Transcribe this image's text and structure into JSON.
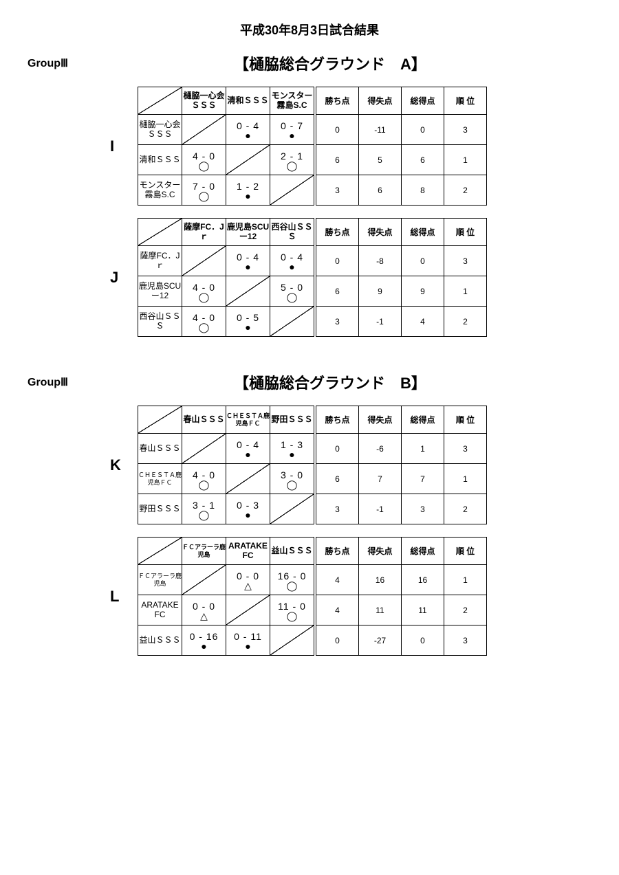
{
  "page_title": "平成30年8月3日試合結果",
  "stats_headers": [
    "勝ち点",
    "得失点",
    "総得点",
    "順 位"
  ],
  "sections": [
    {
      "group_label": "GroupⅢ",
      "venue": "【樋脇総合グラウンド　A】",
      "groups": [
        {
          "letter": "I",
          "teams": [
            "樋脇一心会ＳＳＳ",
            "清和ＳＳＳ",
            "モンスター霧島S.C"
          ],
          "team_small": [
            false,
            false,
            false
          ],
          "matches": [
            [
              null,
              {
                "s": "0 - 4",
                "m": "loss"
              },
              {
                "s": "0 - 7",
                "m": "loss"
              }
            ],
            [
              {
                "s": "4 - 0",
                "m": "win"
              },
              null,
              {
                "s": "2 - 1",
                "m": "win"
              }
            ],
            [
              {
                "s": "7 - 0",
                "m": "win"
              },
              {
                "s": "1 - 2",
                "m": "loss"
              },
              null
            ]
          ],
          "stats": [
            [
              "0",
              "-11",
              "0",
              "3"
            ],
            [
              "6",
              "5",
              "6",
              "1"
            ],
            [
              "3",
              "6",
              "8",
              "2"
            ]
          ]
        },
        {
          "letter": "J",
          "teams": [
            "薩摩FC．Jｒ",
            "鹿児島SCUー12",
            "西谷山ＳＳＳ"
          ],
          "team_small": [
            false,
            false,
            false
          ],
          "matches": [
            [
              null,
              {
                "s": "0 - 4",
                "m": "loss"
              },
              {
                "s": "0 - 4",
                "m": "loss"
              }
            ],
            [
              {
                "s": "4 - 0",
                "m": "win"
              },
              null,
              {
                "s": "5 - 0",
                "m": "win"
              }
            ],
            [
              {
                "s": "4 - 0",
                "m": "win"
              },
              {
                "s": "0 - 5",
                "m": "loss"
              },
              null
            ]
          ],
          "stats": [
            [
              "0",
              "-8",
              "0",
              "3"
            ],
            [
              "6",
              "9",
              "9",
              "1"
            ],
            [
              "3",
              "-1",
              "4",
              "2"
            ]
          ]
        }
      ]
    },
    {
      "group_label": "GroupⅢ",
      "venue": "【樋脇総合グラウンド　B】",
      "groups": [
        {
          "letter": "K",
          "teams": [
            "春山ＳＳＳ",
            "ＣＨＥＳＴＡ鹿児島ＦＣ",
            "野田ＳＳＳ"
          ],
          "team_small": [
            false,
            true,
            false
          ],
          "matches": [
            [
              null,
              {
                "s": "0 - 4",
                "m": "loss"
              },
              {
                "s": "1 - 3",
                "m": "loss"
              }
            ],
            [
              {
                "s": "4 - 0",
                "m": "win"
              },
              null,
              {
                "s": "3 - 0",
                "m": "win"
              }
            ],
            [
              {
                "s": "3 - 1",
                "m": "win"
              },
              {
                "s": "0 - 3",
                "m": "loss"
              },
              null
            ]
          ],
          "stats": [
            [
              "0",
              "-6",
              "1",
              "3"
            ],
            [
              "6",
              "7",
              "7",
              "1"
            ],
            [
              "3",
              "-1",
              "3",
              "2"
            ]
          ]
        },
        {
          "letter": "L",
          "teams": [
            "ＦＣアラーラ鹿児島",
            "ARATAKE FC",
            "益山ＳＳＳ"
          ],
          "team_small": [
            true,
            false,
            false
          ],
          "matches": [
            [
              null,
              {
                "s": "0 - 0",
                "m": "draw"
              },
              {
                "s": "16 - 0",
                "m": "win"
              }
            ],
            [
              {
                "s": "0 - 0",
                "m": "draw"
              },
              null,
              {
                "s": "11 - 0",
                "m": "win"
              }
            ],
            [
              {
                "s": "0 - 16",
                "m": "loss"
              },
              {
                "s": "0 - 11",
                "m": "loss"
              },
              null
            ]
          ],
          "stats": [
            [
              "4",
              "16",
              "16",
              "1"
            ],
            [
              "4",
              "11",
              "11",
              "2"
            ],
            [
              "0",
              "-27",
              "0",
              "3"
            ]
          ]
        }
      ]
    }
  ]
}
